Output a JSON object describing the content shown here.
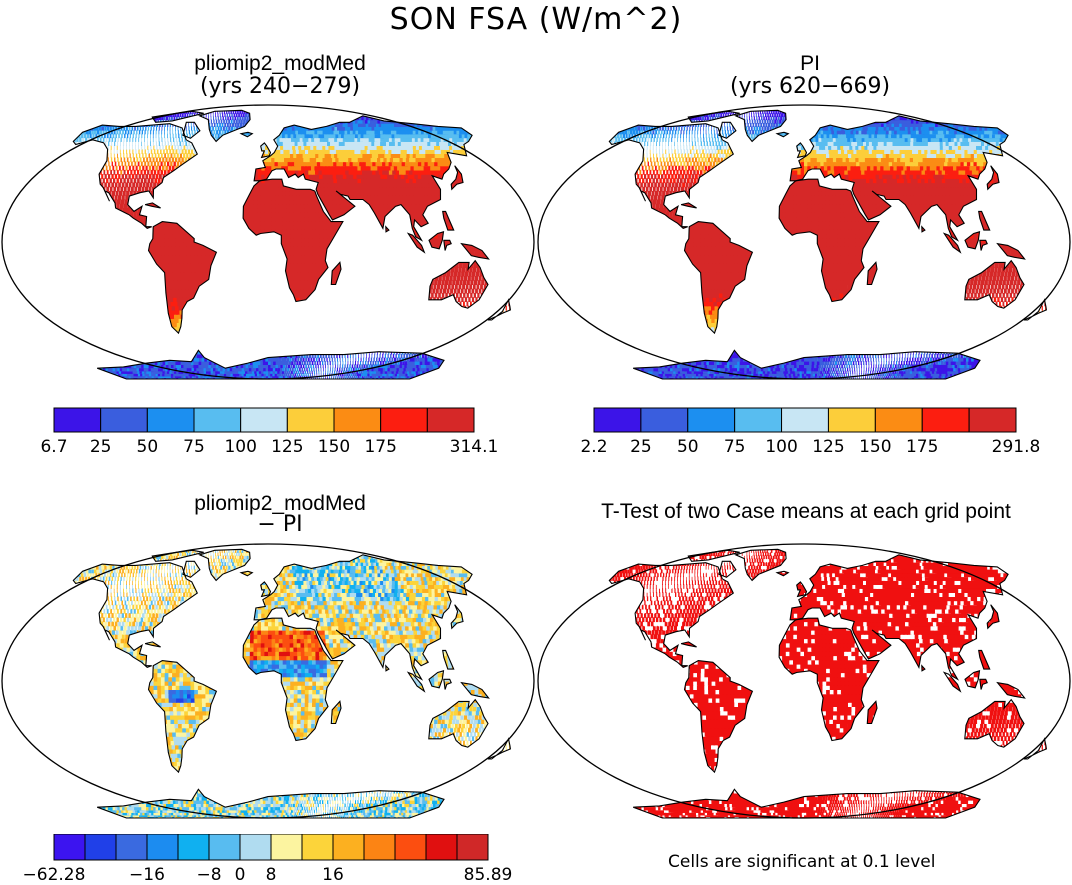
{
  "title": "SON FSA (W/m^2)",
  "panels": [
    {
      "title": "pliomip2_modMed",
      "subtitle": "(yrs 240−279)",
      "scheme": "abs"
    },
    {
      "title": "PI",
      "subtitle": "(yrs 620−669)",
      "scheme": "abs"
    },
    {
      "title": "pliomip2_modMed",
      "subtitle": "− PI",
      "scheme": "diff"
    },
    {
      "title": "T-Test of two Case means at each grid point",
      "subtitle": "",
      "scheme": "sig"
    }
  ],
  "colorbars": [
    {
      "colors": [
        "#3c14e8",
        "#3a5ede",
        "#1c8ff0",
        "#58bdf0",
        "#c8e6f4",
        "#fcce3a",
        "#fb8c14",
        "#fc1e10",
        "#d62828"
      ],
      "labels": [
        "6.7",
        "25",
        "50",
        "75",
        "100",
        "125",
        "150",
        "175",
        "314.1"
      ]
    },
    {
      "colors": [
        "#3c14e8",
        "#3a5ede",
        "#1c8ff0",
        "#58bdf0",
        "#c8e6f4",
        "#fcce3a",
        "#fb8c14",
        "#fc1e10",
        "#d62828"
      ],
      "labels": [
        "2.2",
        "25",
        "50",
        "75",
        "100",
        "125",
        "150",
        "175",
        "291.8"
      ]
    },
    {
      "colors": [
        "#3c14f0",
        "#2040e8",
        "#3a6ae0",
        "#1c8cf0",
        "#10b0f0",
        "#58bcf0",
        "#b0dcf0",
        "#fcf4a0",
        "#fcd43a",
        "#fcb020",
        "#fc8414",
        "#fc4e10",
        "#e01010",
        "#d02828"
      ],
      "labels": [
        "−62.28",
        "−16",
        "−8",
        "0",
        "8",
        "16",
        "85.89"
      ]
    }
  ],
  "note": "Cells are significant at 0.1 level"
}
